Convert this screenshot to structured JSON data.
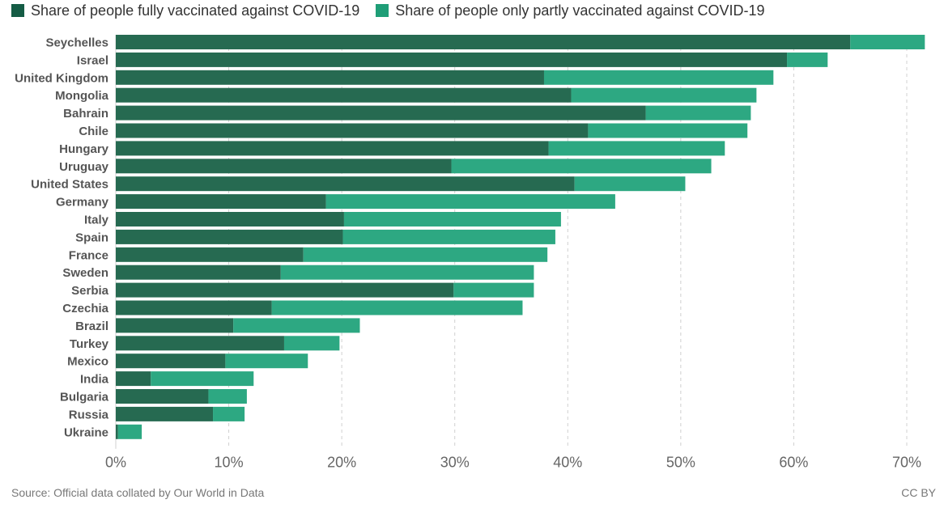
{
  "chart_data": {
    "type": "bar",
    "orientation": "horizontal",
    "stacked": true,
    "categories": [
      "Seychelles",
      "Israel",
      "United Kingdom",
      "Mongolia",
      "Bahrain",
      "Chile",
      "Hungary",
      "Uruguay",
      "United States",
      "Germany",
      "Italy",
      "Spain",
      "France",
      "Sweden",
      "Serbia",
      "Czechia",
      "Brazil",
      "Turkey",
      "Mexico",
      "India",
      "Bulgaria",
      "Russia",
      "Ukraine"
    ],
    "series": [
      {
        "name": "Share of people fully vaccinated against COVID-19",
        "color": "#266a51",
        "values": [
          65.0,
          59.4,
          37.9,
          40.3,
          46.9,
          41.8,
          38.3,
          29.7,
          40.6,
          18.6,
          20.2,
          20.1,
          16.6,
          14.6,
          29.9,
          13.8,
          10.4,
          14.9,
          9.7,
          3.1,
          8.2,
          8.6,
          0.2
        ]
      },
      {
        "name": "Share of people only partly vaccinated against COVID-19",
        "color": "#2da882",
        "values": [
          6.6,
          3.6,
          20.3,
          16.4,
          9.3,
          14.1,
          15.6,
          23.0,
          9.8,
          25.6,
          19.2,
          18.8,
          21.6,
          22.4,
          7.1,
          22.2,
          11.2,
          4.9,
          7.3,
          9.1,
          3.4,
          2.8,
          2.1
        ]
      }
    ],
    "xlim": [
      0,
      70
    ],
    "x_ticks": [
      0,
      10,
      20,
      30,
      40,
      50,
      60,
      70
    ],
    "x_tick_labels": [
      "0%",
      "10%",
      "20%",
      "30%",
      "40%",
      "50%",
      "60%",
      "70%"
    ],
    "grid": "vertical-dashed",
    "legend_position": "top-left",
    "xlabel": "",
    "ylabel": "",
    "title": ""
  },
  "footer": {
    "source": "Source: Official data collated by Our World in Data",
    "license": "CC BY"
  }
}
